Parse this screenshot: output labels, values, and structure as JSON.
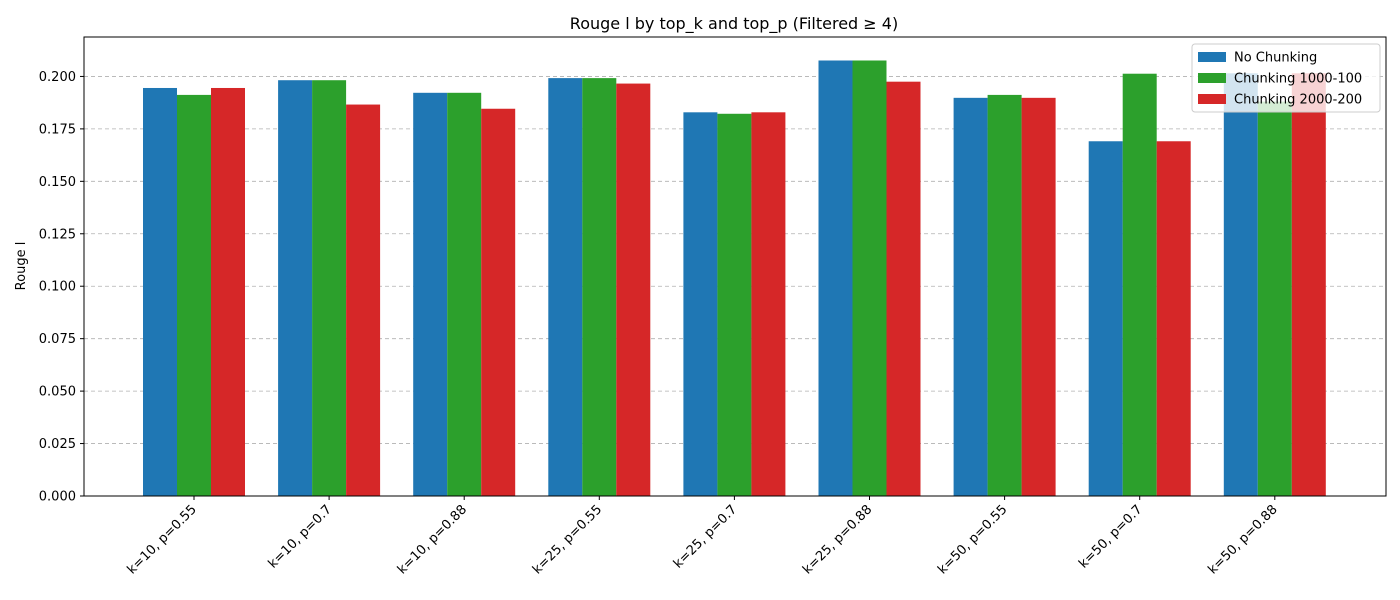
{
  "chart_data": {
    "type": "bar",
    "title": "Rouge l by top_k and top_p (Filtered ≥ 4)",
    "xlabel": "",
    "ylabel": "Rouge l",
    "ylim": [
      0,
      0.2188
    ],
    "yticks": [
      0.0,
      0.025,
      0.05,
      0.075,
      0.1,
      0.125,
      0.15,
      0.175,
      0.2
    ],
    "ytick_labels": [
      "0.000",
      "0.025",
      "0.050",
      "0.075",
      "0.100",
      "0.125",
      "0.150",
      "0.175",
      "0.200"
    ],
    "grid": true,
    "legend_position": "top-right",
    "categories": [
      "k=10, p=0.55",
      "k=10, p=0.7",
      "k=10, p=0.88",
      "k=25, p=0.55",
      "k=25, p=0.7",
      "k=25, p=0.88",
      "k=50, p=0.55",
      "k=50, p=0.7",
      "k=50, p=0.88"
    ],
    "series": [
      {
        "name": "No Chunking",
        "color": "#1f77b4",
        "values": [
          0.1945,
          0.1982,
          0.1922,
          0.1992,
          0.1829,
          0.2076,
          0.1898,
          0.1691,
          0.2015
        ]
      },
      {
        "name": "Chunking 1000-100",
        "color": "#2ca02c",
        "values": [
          0.1912,
          0.1982,
          0.1922,
          0.1992,
          0.1822,
          0.2076,
          0.1912,
          0.2013,
          0.188
        ]
      },
      {
        "name": "Chunking 2000-200",
        "color": "#d62728",
        "values": [
          0.1945,
          0.1866,
          0.1846,
          0.1966,
          0.1829,
          0.1975,
          0.1898,
          0.1691,
          0.2015
        ]
      }
    ]
  }
}
